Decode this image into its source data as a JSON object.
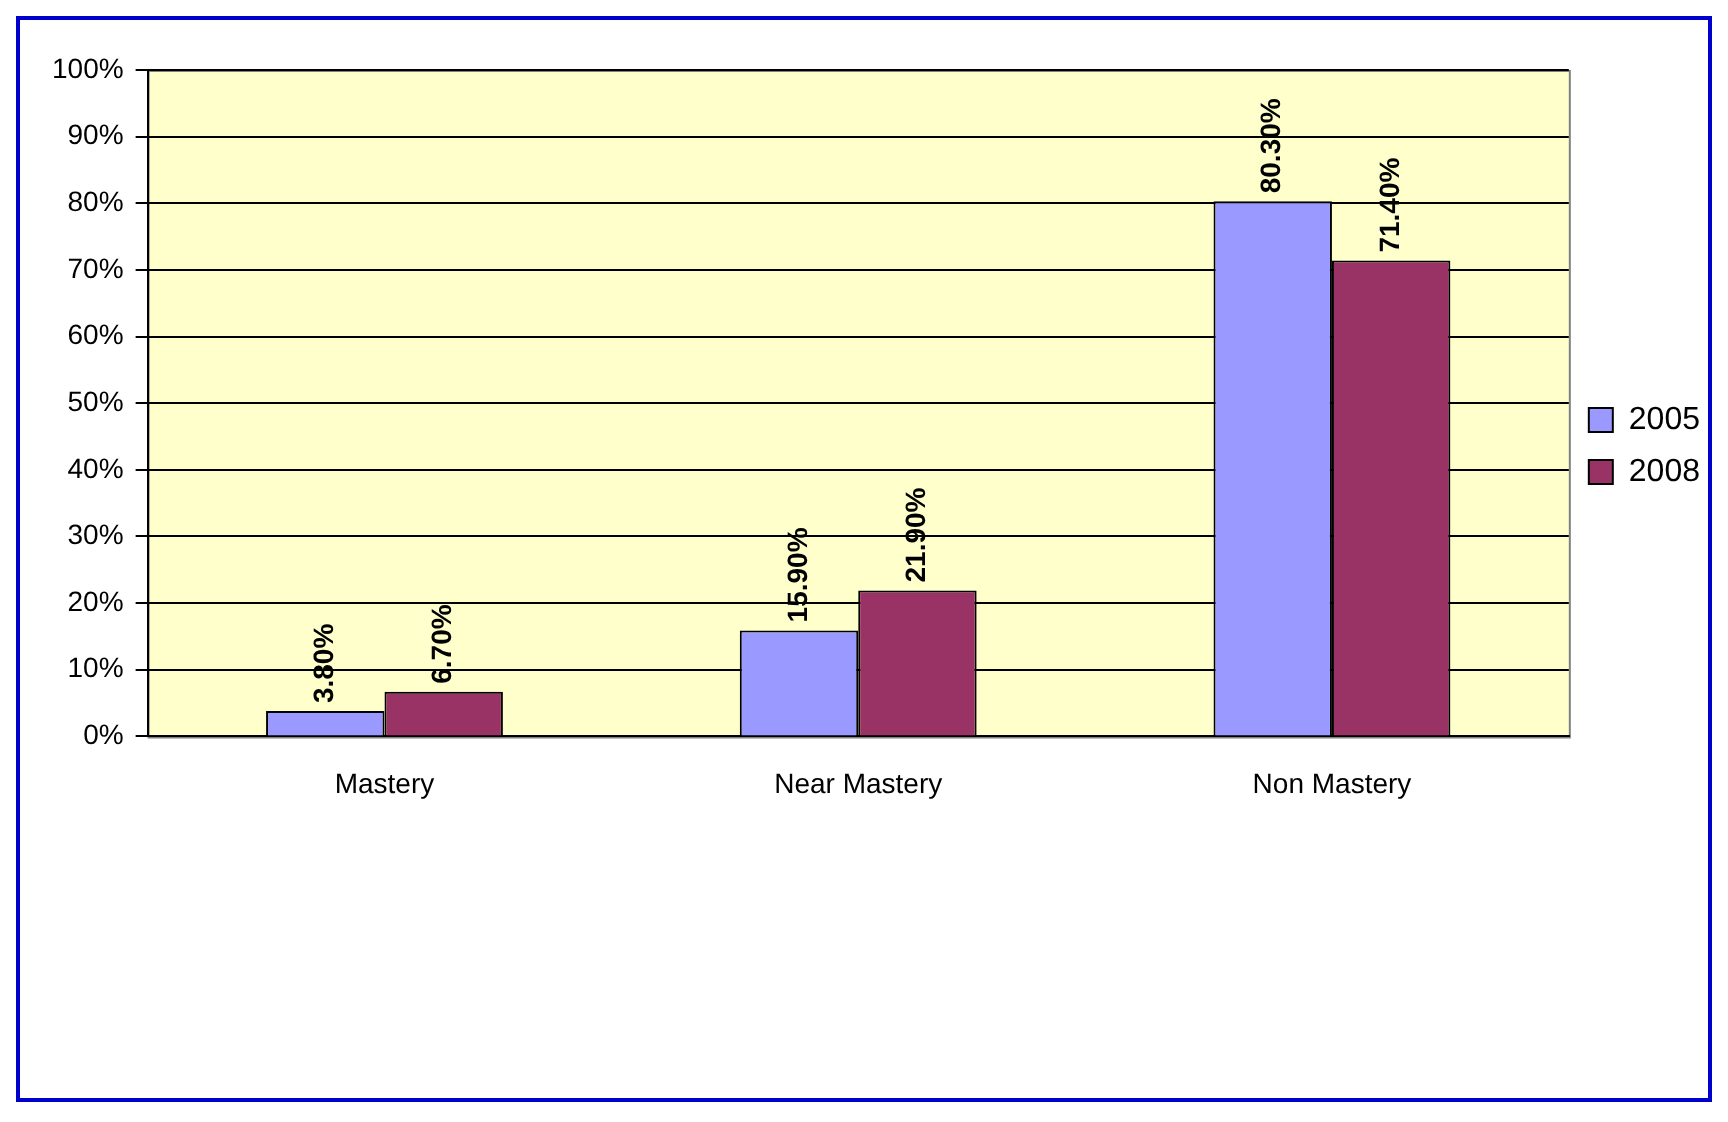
{
  "chart_data": {
    "type": "bar",
    "categories": [
      "Mastery",
      "Near Mastery",
      "Non Mastery"
    ],
    "series": [
      {
        "name": "2005",
        "color": "#9999ff",
        "values": [
          3.8,
          15.9,
          80.3
        ],
        "value_labels": [
          "3.80%",
          "15.90%",
          "80.30%"
        ]
      },
      {
        "name": "2008",
        "color": "#993366",
        "values": [
          6.7,
          21.9,
          71.4
        ],
        "value_labels": [
          "6.70%",
          "21.90%",
          "71.40%"
        ]
      }
    ],
    "ylim": [
      0,
      100
    ],
    "yticks": [
      {
        "value": 0,
        "label": "0%"
      },
      {
        "value": 10,
        "label": "10%"
      },
      {
        "value": 20,
        "label": "20%"
      },
      {
        "value": 30,
        "label": "30%"
      },
      {
        "value": 40,
        "label": "40%"
      },
      {
        "value": 50,
        "label": "50%"
      },
      {
        "value": 60,
        "label": "60%"
      },
      {
        "value": 70,
        "label": "70%"
      },
      {
        "value": 80,
        "label": "80%"
      },
      {
        "value": 90,
        "label": "90%"
      },
      {
        "value": 100,
        "label": "100%"
      }
    ],
    "grid": "y",
    "legend": "right"
  }
}
